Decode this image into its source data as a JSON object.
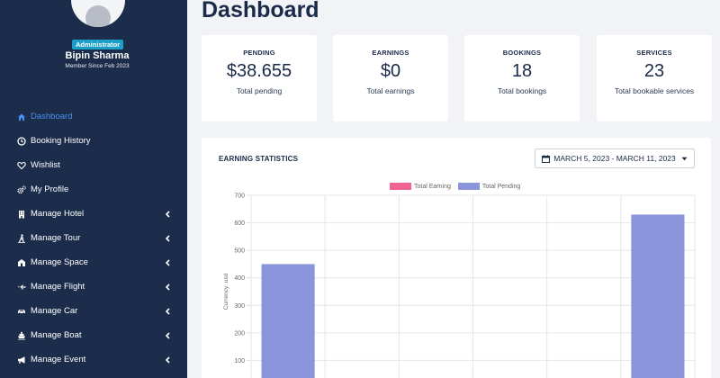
{
  "sidebar": {
    "role": "Administrator",
    "user_name": "Bipin Sharma",
    "member_since": "Member Since Feb 2023",
    "items": [
      {
        "label": "Dashboard",
        "icon": "home-icon",
        "active": true,
        "has_submenu": false
      },
      {
        "label": "Booking History",
        "icon": "clock-icon",
        "active": false,
        "has_submenu": false
      },
      {
        "label": "Wishlist",
        "icon": "heart-icon",
        "active": false,
        "has_submenu": false
      },
      {
        "label": "My Profile",
        "icon": "cogs-icon",
        "active": false,
        "has_submenu": false
      },
      {
        "label": "Manage Hotel",
        "icon": "building-icon",
        "active": false,
        "has_submenu": true
      },
      {
        "label": "Manage Tour",
        "icon": "hiker-icon",
        "active": false,
        "has_submenu": true
      },
      {
        "label": "Manage Space",
        "icon": "house-icon",
        "active": false,
        "has_submenu": true
      },
      {
        "label": "Manage Flight",
        "icon": "plane-icon",
        "active": false,
        "has_submenu": true
      },
      {
        "label": "Manage Car",
        "icon": "car-icon",
        "active": false,
        "has_submenu": true
      },
      {
        "label": "Manage Boat",
        "icon": "ship-icon",
        "active": false,
        "has_submenu": true
      },
      {
        "label": "Manage Event",
        "icon": "megaphone-icon",
        "active": false,
        "has_submenu": true
      }
    ]
  },
  "main": {
    "title": "Dashboard",
    "stats": [
      {
        "title": "PENDING",
        "value": "$38.655",
        "sub": "Total pending"
      },
      {
        "title": "EARNINGS",
        "value": "$0",
        "sub": "Total earnings"
      },
      {
        "title": "BOOKINGS",
        "value": "18",
        "sub": "Total bookings"
      },
      {
        "title": "SERVICES",
        "value": "23",
        "sub": "Total bookable services"
      }
    ],
    "chart_card": {
      "title": "EARNING STATISTICS",
      "date_range": "MARCH 5, 2023 - MARCH 11, 2023"
    }
  },
  "colors": {
    "sidebar_bg": "#1c2d4b",
    "active_link": "#4a8ff0",
    "badge": "#1aa0c8",
    "earning": "#f06292",
    "pending": "#8b95dc"
  },
  "chart_data": {
    "type": "bar",
    "categories": [
      "",
      "",
      "",
      "",
      "",
      ""
    ],
    "series": [
      {
        "name": "Total Earning",
        "values": [
          0,
          0,
          0,
          0,
          0,
          0
        ]
      },
      {
        "name": "Total Pending",
        "values": [
          450,
          0,
          0,
          0,
          0,
          630
        ]
      }
    ],
    "ylabel": "Currency: usd",
    "yticks": [
      100,
      200,
      300,
      400,
      500,
      600,
      700
    ],
    "ylim": [
      0,
      700
    ],
    "grid": true,
    "legend": "top-center"
  }
}
